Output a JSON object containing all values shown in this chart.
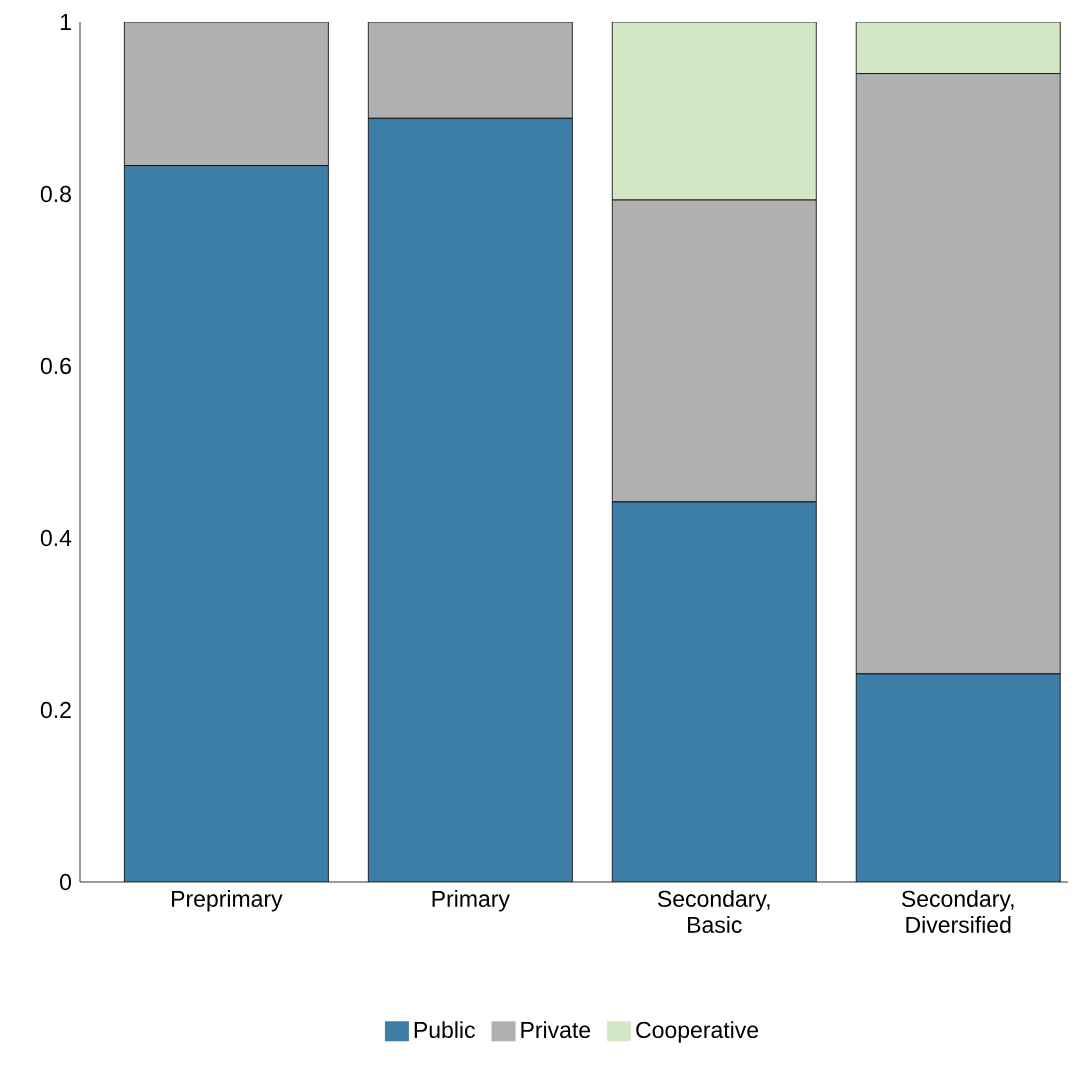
{
  "chart_data": {
    "type": "bar",
    "stacked": true,
    "categories": [
      "Preprimary",
      "Primary",
      "Secondary, Basic",
      "Secondary, Diversified"
    ],
    "series": [
      {
        "name": "Public",
        "color": "#3d7ea6",
        "values": [
          0.833,
          0.888,
          0.442,
          0.242
        ]
      },
      {
        "name": "Private",
        "color": "#b0b0b0",
        "values": [
          0.167,
          0.112,
          0.351,
          0.698
        ]
      },
      {
        "name": "Cooperative",
        "color": "#d3e7c4",
        "values": [
          0,
          0,
          0.207,
          0.06
        ]
      }
    ],
    "ylim": [
      0,
      1
    ],
    "yticks": [
      0,
      0.2,
      0.4,
      0.6,
      0.8,
      1
    ],
    "legend": "bottom"
  }
}
